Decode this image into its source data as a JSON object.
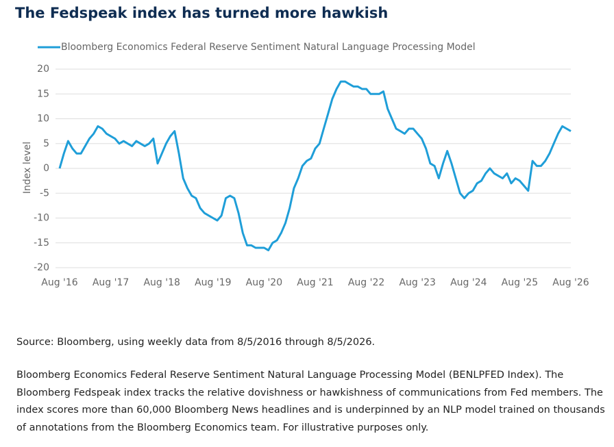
{
  "chart_data": {
    "type": "line",
    "title": "The Fedspeak index has turned more hawkish",
    "y_label": "Index level",
    "x": [
      "2016-08",
      "2016-09",
      "2016-10",
      "2016-11",
      "2016-12",
      "2017-01",
      "2017-02",
      "2017-03",
      "2017-04",
      "2017-05",
      "2017-06",
      "2017-07",
      "2017-08",
      "2017-09",
      "2017-10",
      "2017-11",
      "2017-12",
      "2018-01",
      "2018-02",
      "2018-03",
      "2018-04",
      "2018-05",
      "2018-06",
      "2018-07",
      "2018-08",
      "2018-09",
      "2018-10",
      "2018-11",
      "2018-12",
      "2019-01",
      "2019-02",
      "2019-03",
      "2019-04",
      "2019-05",
      "2019-06",
      "2019-07",
      "2019-08",
      "2019-09",
      "2019-10",
      "2019-11",
      "2019-12",
      "2020-01",
      "2020-02",
      "2020-03",
      "2020-04",
      "2020-05",
      "2020-06",
      "2020-07",
      "2020-08",
      "2020-09",
      "2020-10",
      "2020-11",
      "2020-12",
      "2021-01",
      "2021-02",
      "2021-03",
      "2021-04",
      "2021-05",
      "2021-06",
      "2021-07",
      "2021-08",
      "2021-09",
      "2021-10",
      "2021-11",
      "2021-12",
      "2022-01",
      "2022-02",
      "2022-03",
      "2022-04",
      "2022-05",
      "2022-06",
      "2022-07",
      "2022-08",
      "2022-09",
      "2022-10",
      "2022-11",
      "2022-12",
      "2023-01",
      "2023-02",
      "2023-03",
      "2023-04",
      "2023-05",
      "2023-06",
      "2023-07",
      "2023-08",
      "2023-09",
      "2023-10",
      "2023-11",
      "2023-12",
      "2024-01",
      "2024-02",
      "2024-03",
      "2024-04",
      "2024-05",
      "2024-06",
      "2024-07",
      "2024-08",
      "2024-09",
      "2024-10",
      "2024-11",
      "2024-12",
      "2025-01",
      "2025-02",
      "2025-03",
      "2025-04",
      "2025-05",
      "2025-06",
      "2025-07",
      "2025-08",
      "2025-09",
      "2025-10",
      "2025-11",
      "2025-12",
      "2026-01",
      "2026-02",
      "2026-03",
      "2026-04",
      "2026-05",
      "2026-06",
      "2026-07",
      "2026-08"
    ],
    "series": [
      {
        "name": "Bloomberg Economics Federal Reserve Sentiment Natural Language Processing Model",
        "color": "#1f9ed8",
        "values": [
          0,
          3,
          5.5,
          4,
          3,
          3,
          4.5,
          6,
          7,
          8.5,
          8,
          7,
          6.5,
          6,
          5,
          5.5,
          5,
          4.5,
          5.5,
          5,
          4.5,
          5,
          6,
          1,
          3,
          5,
          6.5,
          7.5,
          3,
          -2,
          -4,
          -5.5,
          -6,
          -8,
          -9,
          -9.5,
          -10,
          -10.5,
          -9.5,
          -6,
          -5.5,
          -6,
          -9,
          -13,
          -15.5,
          -15.5,
          -16,
          -16,
          -16,
          -16.5,
          -15,
          -14.5,
          -13,
          -11,
          -8,
          -4,
          -2,
          0.5,
          1.5,
          2,
          4,
          5,
          8,
          11,
          14,
          16,
          17.5,
          17.5,
          17,
          16.5,
          16.5,
          16,
          16,
          15,
          15,
          15,
          15.5,
          12,
          10,
          8,
          7.5,
          7,
          8,
          8,
          7,
          6,
          4,
          1,
          0.5,
          -2,
          1,
          3.5,
          1,
          -2,
          -5,
          -6,
          -5,
          -4.5,
          -3,
          -2.5,
          -1,
          0,
          -1,
          -1.5,
          -2,
          -1,
          -3,
          -2,
          -2.5,
          -3.5,
          -4.5,
          1.5,
          0.5,
          0.5,
          1.5,
          3,
          5,
          7,
          8.5,
          8,
          7.5
        ]
      }
    ],
    "xlim": [
      "2016-08",
      "2026-08"
    ],
    "xticks": [
      {
        "value": "2016-08",
        "label": "Aug '16"
      },
      {
        "value": "2017-08",
        "label": "Aug '17"
      },
      {
        "value": "2018-08",
        "label": "Aug '18"
      },
      {
        "value": "2019-08",
        "label": "Aug '19"
      },
      {
        "value": "2020-08",
        "label": "Aug '20"
      },
      {
        "value": "2021-08",
        "label": "Aug '21"
      },
      {
        "value": "2022-08",
        "label": "Aug '22"
      },
      {
        "value": "2023-08",
        "label": "Aug '23"
      },
      {
        "value": "2024-08",
        "label": "Aug '24"
      },
      {
        "value": "2025-08",
        "label": "Aug '25"
      },
      {
        "value": "2026-08",
        "label": "Aug '26"
      }
    ],
    "ylim": [
      -20,
      20
    ],
    "yticks": [
      -20,
      -15,
      -10,
      -5,
      0,
      5,
      10,
      15,
      20
    ],
    "grid": true,
    "legend": "top-left"
  },
  "notes": {
    "source": "Source: Bloomberg, using weekly data from 8/5/2016 through 8/5/2026.",
    "description": "Bloomberg Economics Federal Reserve Sentiment Natural Language Processing Model (BENLPFED Index). The Bloomberg Fedspeak index tracks the relative dovishness or hawkishness of communications from Fed members. The index scores more than 60,000 Bloomberg News headlines and is underpinned by an NLP model trained on thousands of annotations from the Bloomberg Economics team. For illustrative purposes only."
  }
}
